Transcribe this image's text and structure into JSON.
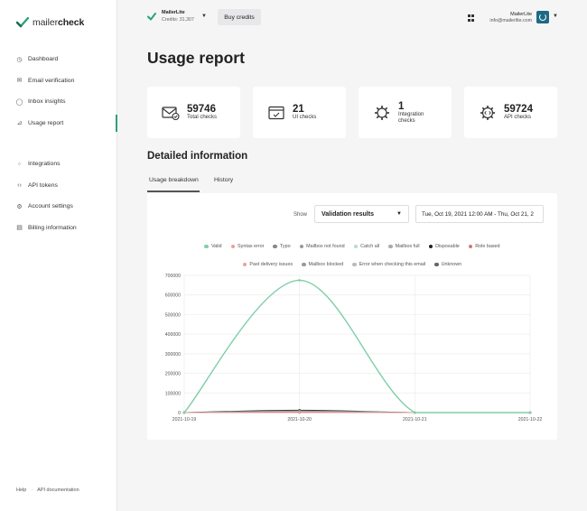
{
  "brand": {
    "light": "mailer",
    "bold": "check",
    "accent": "#2aa37a"
  },
  "nav": {
    "main": [
      {
        "label": "Dashboard",
        "icon": "dashboard-icon",
        "glyph": "◷"
      },
      {
        "label": "Email verification",
        "icon": "envelope-icon",
        "glyph": "✉"
      },
      {
        "label": "Inbox insights",
        "icon": "inbox-icon",
        "glyph": "◯"
      },
      {
        "label": "Usage report",
        "icon": "chart-icon",
        "glyph": "⊿",
        "active": true
      }
    ],
    "secondary": [
      {
        "label": "Integrations",
        "icon": "integrations-icon",
        "glyph": "⁘"
      },
      {
        "label": "API tokens",
        "icon": "code-icon",
        "glyph": "‹›"
      },
      {
        "label": "Account settings",
        "icon": "settings-icon",
        "glyph": "⚙"
      },
      {
        "label": "Billing information",
        "icon": "billing-icon",
        "glyph": "▤"
      }
    ]
  },
  "footer": {
    "help": "Help",
    "api_docs": "API documentation"
  },
  "account": {
    "name": "MailerLite",
    "credits": "Credits: 31,307"
  },
  "topbar": {
    "buy_credits": "Buy credits"
  },
  "user": {
    "name": "MailerLite",
    "email": "info@mailerlite.com"
  },
  "page": {
    "title": "Usage report"
  },
  "stats": [
    {
      "value": "59746",
      "label": "Total checks",
      "icon": "envelope-check-icon"
    },
    {
      "value": "21",
      "label": "UI checks",
      "icon": "window-check-icon"
    },
    {
      "value": "1",
      "label": "Integration checks",
      "icon": "puzzle-gear-icon"
    },
    {
      "value": "59724",
      "label": "API checks",
      "icon": "api-gear-icon"
    }
  ],
  "details": {
    "title": "Detailed information",
    "tabs": [
      "Usage breakdown",
      "History"
    ],
    "show_label": "Show",
    "select_value": "Validation results",
    "date_range": "Tue, Oct 19, 2021 12:00 AM - Thu, Oct 21, 2"
  },
  "chart_data": {
    "type": "line",
    "x": [
      "2021-10-19",
      "2021-10-20",
      "2021-10-21",
      "2021-10-22"
    ],
    "ylim": [
      0,
      700000
    ],
    "yticks": [
      0,
      100000,
      200000,
      300000,
      400000,
      500000,
      600000,
      700000
    ],
    "grid": true,
    "legend_position": "top",
    "series": [
      {
        "name": "Valid",
        "color": "#7fcfa8",
        "values": [
          0,
          675000,
          0,
          0
        ]
      },
      {
        "name": "Syntax error",
        "color": "#e8a0a0",
        "values": [
          0,
          0,
          0,
          0
        ]
      },
      {
        "name": "Typo",
        "color": "#888888",
        "values": [
          0,
          0,
          0,
          0
        ]
      },
      {
        "name": "Mailbox not found",
        "color": "#999999",
        "values": [
          0,
          8000,
          0,
          0
        ]
      },
      {
        "name": "Catch all",
        "color": "#b8dcc8",
        "values": [
          0,
          0,
          0,
          0
        ]
      },
      {
        "name": "Mailbox full",
        "color": "#aaaaaa",
        "values": [
          0,
          0,
          0,
          0
        ]
      },
      {
        "name": "Disposable",
        "color": "#222222",
        "values": [
          0,
          12000,
          0,
          0
        ]
      },
      {
        "name": "Role based",
        "color": "#c97b7b",
        "values": [
          0,
          3000,
          0,
          0
        ]
      },
      {
        "name": "Past delivery issues",
        "color": "#e6a3a3",
        "values": [
          0,
          0,
          0,
          0
        ]
      },
      {
        "name": "Mailbox blocked",
        "color": "#9a9a9a",
        "values": [
          0,
          0,
          0,
          0
        ]
      },
      {
        "name": "Error when checking this email",
        "color": "#bbbbbb",
        "values": [
          0,
          0,
          0,
          0
        ]
      },
      {
        "name": "Unknown",
        "color": "#666666",
        "values": [
          0,
          0,
          0,
          0
        ]
      }
    ]
  }
}
